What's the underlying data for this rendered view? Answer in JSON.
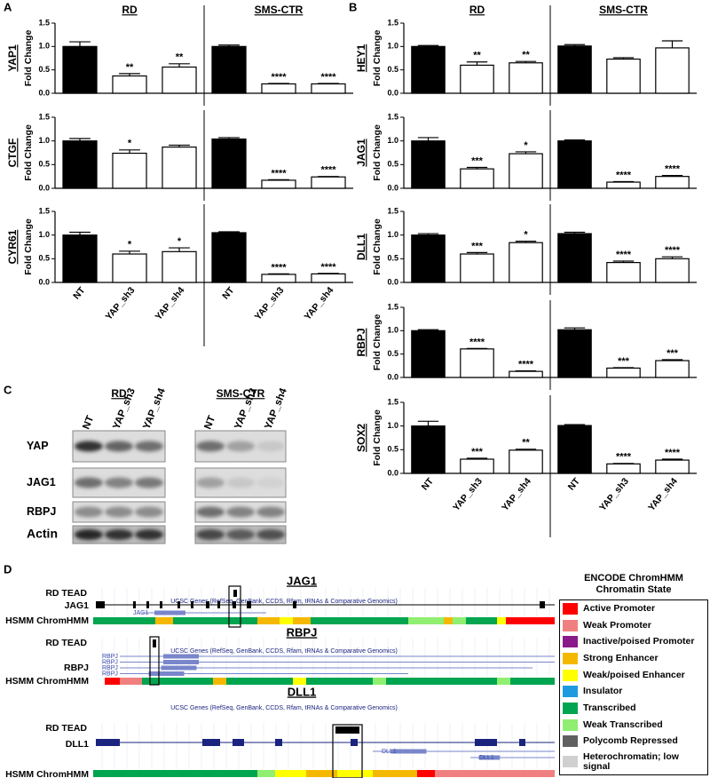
{
  "panel_labels": [
    "A",
    "B",
    "C",
    "D"
  ],
  "chart_data": [
    {
      "type": "bar",
      "gene": "YAP1",
      "ylabel": "Fold Change",
      "groups": [
        "RD",
        "SMS-CTR"
      ],
      "values": [
        1.0,
        0.37,
        0.56,
        1.0,
        0.2,
        0.2
      ],
      "errors": [
        0.1,
        0.05,
        0.07,
        0.03,
        0.01,
        0.01
      ],
      "annotations": [
        null,
        "**",
        "**",
        null,
        "****",
        "****"
      ],
      "colors": [
        "#000000",
        "#ffffff",
        "#ffffff",
        "#000000",
        "#ffffff",
        "#ffffff"
      ],
      "ylim": [
        0,
        1.5
      ],
      "yticks": [
        {
          "value": 0,
          "label": "0.0"
        },
        {
          "value": 0.5,
          "label": "0.5"
        },
        {
          "value": 1,
          "label": "1.0"
        },
        {
          "value": 1.5,
          "label": "1.5"
        }
      ]
    },
    {
      "type": "bar",
      "gene": "CTGF",
      "ylabel": "Fold Change",
      "values": [
        1.0,
        0.74,
        0.87,
        1.04,
        0.17,
        0.24
      ],
      "errors": [
        0.05,
        0.07,
        0.04,
        0.03,
        0.01,
        0.01
      ],
      "annotations": [
        null,
        "*",
        null,
        null,
        "****",
        "****"
      ],
      "colors": [
        "#000000",
        "#ffffff",
        "#ffffff",
        "#000000",
        "#ffffff",
        "#ffffff"
      ],
      "ylim": [
        0,
        1.5
      ],
      "yticks": [
        {
          "value": 0,
          "label": "0.0"
        },
        {
          "value": 0.5,
          "label": "0.5"
        },
        {
          "value": 1,
          "label": "1.0"
        },
        {
          "value": 1.5,
          "label": "1.5"
        }
      ]
    },
    {
      "type": "bar",
      "gene": "CYR61",
      "ylabel": "Fold Change",
      "categories": [
        "NT",
        "YAP_sh3",
        "YAP_sh4",
        "NT",
        "YAP_sh3",
        "YAP_sh4"
      ],
      "values": [
        1.0,
        0.6,
        0.65,
        1.05,
        0.17,
        0.18
      ],
      "errors": [
        0.06,
        0.06,
        0.08,
        0.02,
        0.01,
        0.01
      ],
      "annotations": [
        null,
        "*",
        "*",
        null,
        "****",
        "****"
      ],
      "colors": [
        "#000000",
        "#ffffff",
        "#ffffff",
        "#000000",
        "#ffffff",
        "#ffffff"
      ],
      "ylim": [
        0,
        1.5
      ],
      "yticks": [
        {
          "value": 0,
          "label": "0.0"
        },
        {
          "value": 0.5,
          "label": "0.5"
        },
        {
          "value": 1,
          "label": "1.0"
        },
        {
          "value": 1.5,
          "label": "1.5"
        }
      ]
    },
    {
      "type": "bar",
      "gene": "HEY1",
      "ylabel": "Fold Change",
      "groups": [
        "RD",
        "SMS-CTR"
      ],
      "values": [
        1.0,
        0.6,
        0.65,
        1.01,
        0.73,
        0.97
      ],
      "errors": [
        0.02,
        0.07,
        0.03,
        0.03,
        0.03,
        0.15
      ],
      "annotations": [
        null,
        "**",
        "**",
        null,
        null,
        null
      ],
      "colors": [
        "#000000",
        "#ffffff",
        "#ffffff",
        "#000000",
        "#ffffff",
        "#ffffff"
      ],
      "ylim": [
        0,
        1.5
      ],
      "yticks": [
        {
          "value": 0,
          "label": "0.0"
        },
        {
          "value": 0.5,
          "label": "0.5"
        },
        {
          "value": 1,
          "label": "1.0"
        },
        {
          "value": 1.5,
          "label": "1.5"
        }
      ]
    },
    {
      "type": "bar",
      "gene": "JAG1",
      "ylabel": "Fold Change",
      "values": [
        1.0,
        0.41,
        0.73,
        1.0,
        0.13,
        0.25
      ],
      "errors": [
        0.07,
        0.03,
        0.04,
        0.02,
        0.01,
        0.02
      ],
      "annotations": [
        null,
        "***",
        "*",
        null,
        "****",
        "****"
      ],
      "colors": [
        "#000000",
        "#ffffff",
        "#ffffff",
        "#000000",
        "#ffffff",
        "#ffffff"
      ],
      "ylim": [
        0,
        1.5
      ],
      "yticks": [
        {
          "value": 0,
          "label": "0.0"
        },
        {
          "value": 0.5,
          "label": "0.5"
        },
        {
          "value": 1,
          "label": "1.0"
        },
        {
          "value": 1.5,
          "label": "1.5"
        }
      ]
    },
    {
      "type": "bar",
      "gene": "DLL1",
      "ylabel": "Fold Change",
      "values": [
        1.0,
        0.6,
        0.84,
        1.03,
        0.42,
        0.5
      ],
      "errors": [
        0.03,
        0.03,
        0.03,
        0.03,
        0.03,
        0.04
      ],
      "annotations": [
        null,
        "***",
        "*",
        null,
        "****",
        "****"
      ],
      "colors": [
        "#000000",
        "#ffffff",
        "#ffffff",
        "#000000",
        "#ffffff",
        "#ffffff"
      ],
      "ylim": [
        0,
        1.5
      ],
      "yticks": [
        {
          "value": 0,
          "label": "0.0"
        },
        {
          "value": 0.5,
          "label": "0.5"
        },
        {
          "value": 1,
          "label": "1.0"
        },
        {
          "value": 1.5,
          "label": "1.5"
        }
      ]
    },
    {
      "type": "bar",
      "gene": "RBPJ",
      "ylabel": "Fold Change",
      "values": [
        1.0,
        0.61,
        0.13,
        1.02,
        0.2,
        0.36
      ],
      "errors": [
        0.02,
        0.01,
        0.01,
        0.04,
        0.01,
        0.02
      ],
      "annotations": [
        null,
        "****",
        "****",
        null,
        "***",
        "***"
      ],
      "colors": [
        "#000000",
        "#ffffff",
        "#ffffff",
        "#000000",
        "#ffffff",
        "#ffffff"
      ],
      "ylim": [
        0,
        1.5
      ],
      "yticks": [
        {
          "value": 0,
          "label": "0.0"
        },
        {
          "value": 0.5,
          "label": "0.5"
        },
        {
          "value": 1,
          "label": "1.0"
        },
        {
          "value": 1.5,
          "label": "1.5"
        }
      ]
    },
    {
      "type": "bar",
      "gene": "SOX2",
      "ylabel": "Fold Change",
      "categories": [
        "NT",
        "YAP_sh3",
        "YAP_sh4",
        "NT",
        "YAP_sh3",
        "YAP_sh4"
      ],
      "values": [
        1.0,
        0.3,
        0.49,
        1.01,
        0.2,
        0.28
      ],
      "errors": [
        0.1,
        0.02,
        0.02,
        0.02,
        0.01,
        0.02
      ],
      "annotations": [
        null,
        "***",
        "**",
        null,
        "****",
        "****"
      ],
      "colors": [
        "#000000",
        "#ffffff",
        "#ffffff",
        "#000000",
        "#ffffff",
        "#ffffff"
      ],
      "ylim": [
        0,
        1.5
      ],
      "yticks": [
        {
          "value": 0,
          "label": "0.0"
        },
        {
          "value": 0.5,
          "label": "0.5"
        },
        {
          "value": 1,
          "label": "1.0"
        },
        {
          "value": 1.5,
          "label": "1.5"
        }
      ]
    }
  ],
  "blot": {
    "groups": [
      "RD",
      "SMS-CTR"
    ],
    "lanes": [
      "NT",
      "YAP_sh3",
      "YAP_sh4",
      "NT",
      "YAP_sh3",
      "YAP_sh4"
    ],
    "rows": [
      "YAP",
      "JAG1",
      "RBPJ",
      "Actin"
    ]
  },
  "genome": {
    "tracks": [
      {
        "gene": "JAG1",
        "tead_label": "RD TEAD",
        "gene_label": "JAG1",
        "chromhmm_label": "HSMM ChromHMM",
        "ucsc_label": "UCSC Genes (RefSeq, GenBank, CCDS, Rfam, tRNAs & Comparative Genomics)",
        "isoform_labels": [
          "JAG1"
        ]
      },
      {
        "gene": "RBPJ",
        "tead_label": "RD TEAD",
        "gene_label": "RBPJ",
        "chromhmm_label": "HSMM ChromHMM",
        "ucsc_label": "UCSC Genes (RefSeq, GenBank, CCDS, Rfam, tRNAs & Comparative Genomics)",
        "isoform_labels": [
          "RBPJ",
          "RBPJ",
          "RBPJ",
          "RBPJ"
        ]
      },
      {
        "gene": "DLL1",
        "tead_label": "RD TEAD",
        "gene_label": "DLL1",
        "chromhmm_label": "HSMM ChromHMM",
        "ucsc_label": "UCSC Genes (RefSeq, GenBank, CCDS, Rfam, tRNAs & Comparative Genomics)",
        "isoform_labels": [
          "DLL1",
          "DLL1"
        ]
      }
    ],
    "legend": {
      "title": "ENCODE ChromHMM Chromatin State",
      "entries": [
        {
          "label": "Active Promoter",
          "color": "#ff0000"
        },
        {
          "label": "Weak Promoter",
          "color": "#f08080"
        },
        {
          "label": "Inactive/poised Promoter",
          "color": "#8a1a8a"
        },
        {
          "label": "Strong Enhancer",
          "color": "#f5b800"
        },
        {
          "label": "Weak/poised Enhancer",
          "color": "#ffff00"
        },
        {
          "label": "Insulator",
          "color": "#1e9be0"
        },
        {
          "label": "Transcribed",
          "color": "#00a550"
        },
        {
          "label": "Weak Transcribed",
          "color": "#90ee70"
        },
        {
          "label": "Polycomb Repressed",
          "color": "#606060"
        },
        {
          "label": "Heterochromatin; low signal",
          "color": "#d0d0d0"
        }
      ]
    }
  }
}
